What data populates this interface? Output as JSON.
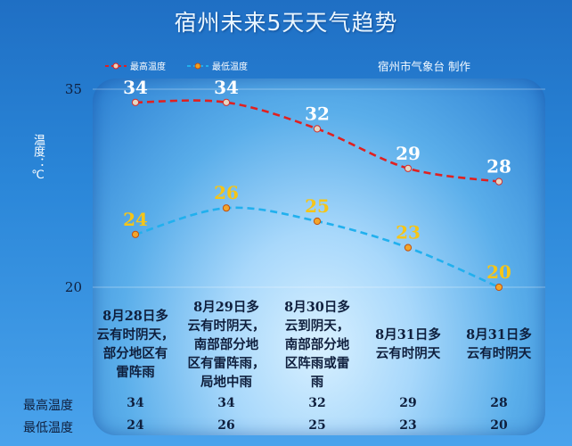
{
  "title": "宿州未来5天天气趋势",
  "source": "宿州市气象台 制作",
  "chart_data": {
    "type": "line",
    "categories": [
      "8月28日多云有时阴天，部分地区有雷阵雨",
      "8月29日多云有时阴天，南部部分地区有雷阵雨，局地中雨",
      "8月30日多云到阴天，南部部分地区阵雨或雷雨",
      "8月31日多云有时阴天",
      "8月31日多云有时阴天"
    ],
    "series": [
      {
        "name": "最高温度",
        "values": [
          34,
          34,
          32,
          29,
          28
        ],
        "color": "#e02020",
        "label_color": "#ffffff"
      },
      {
        "name": "最低温度",
        "values": [
          24,
          26,
          25,
          23,
          20
        ],
        "color": "#21b0ee",
        "label_color": "#f5c518"
      }
    ],
    "ylabel": "温度：℃",
    "yticks": [
      20,
      35
    ],
    "ylim": [
      20,
      35
    ],
    "legend": "top-left",
    "grid": false
  },
  "descriptions": [
    [
      "8月28日多",
      "云有时阴天，",
      "部分地区有",
      "雷阵雨"
    ],
    [
      "8月29日多",
      "云有时阴天，",
      "南部部分地",
      "区有雷阵雨，",
      "局地中雨"
    ],
    [
      "8月30日多",
      "云到阴天，",
      "南部部分地",
      "区阵雨或雷",
      "雨"
    ],
    [
      "8月31日多",
      "云有时阴天"
    ],
    [
      "8月31日多",
      "云有时阴天"
    ]
  ],
  "table": {
    "high_label": "最高温度",
    "low_label": "最低温度"
  }
}
